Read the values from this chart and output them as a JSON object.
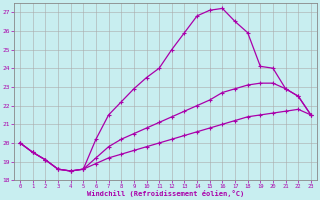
{
  "xlabel": "Windchill (Refroidissement éolien,°C)",
  "bg_color": "#c8eef0",
  "grid_color": "#aaaaaa",
  "line_color": "#aa00aa",
  "xlim": [
    -0.5,
    23.5
  ],
  "ylim": [
    18,
    27.5
  ],
  "xticks": [
    0,
    1,
    2,
    3,
    4,
    5,
    6,
    7,
    8,
    9,
    10,
    11,
    12,
    13,
    14,
    15,
    16,
    17,
    18,
    19,
    20,
    21,
    22,
    23
  ],
  "yticks": [
    18,
    19,
    20,
    21,
    22,
    23,
    24,
    25,
    26,
    27
  ],
  "curve1_x": [
    0,
    1,
    2,
    3,
    4,
    5,
    6,
    7,
    8,
    9,
    10,
    11,
    12,
    13,
    14,
    15,
    16,
    17,
    18,
    19,
    20,
    21,
    22,
    23
  ],
  "curve1_y": [
    20.0,
    19.5,
    19.1,
    18.6,
    18.5,
    18.6,
    20.2,
    21.5,
    22.2,
    22.9,
    23.5,
    24.0,
    25.0,
    25.9,
    26.8,
    27.1,
    27.2,
    26.5,
    25.9,
    24.1,
    24.0,
    22.9,
    22.5,
    21.5
  ],
  "curve2_x": [
    0,
    1,
    2,
    3,
    4,
    5,
    6,
    7,
    8,
    9,
    10,
    11,
    12,
    13,
    14,
    15,
    16,
    17,
    18,
    19,
    20,
    21,
    22,
    23
  ],
  "curve2_y": [
    20.0,
    19.5,
    19.1,
    18.6,
    18.5,
    18.6,
    19.2,
    19.8,
    20.2,
    20.5,
    20.8,
    21.1,
    21.4,
    21.7,
    22.0,
    22.3,
    22.7,
    22.9,
    23.1,
    23.2,
    23.2,
    22.9,
    22.5,
    21.5
  ],
  "curve3_x": [
    0,
    1,
    2,
    3,
    4,
    5,
    6,
    7,
    8,
    9,
    10,
    11,
    12,
    13,
    14,
    15,
    16,
    17,
    18,
    19,
    20,
    21,
    22,
    23
  ],
  "curve3_y": [
    20.0,
    19.5,
    19.1,
    18.6,
    18.5,
    18.6,
    18.9,
    19.2,
    19.4,
    19.6,
    19.8,
    20.0,
    20.2,
    20.4,
    20.6,
    20.8,
    21.0,
    21.2,
    21.4,
    21.5,
    21.6,
    21.7,
    21.8,
    21.5
  ]
}
